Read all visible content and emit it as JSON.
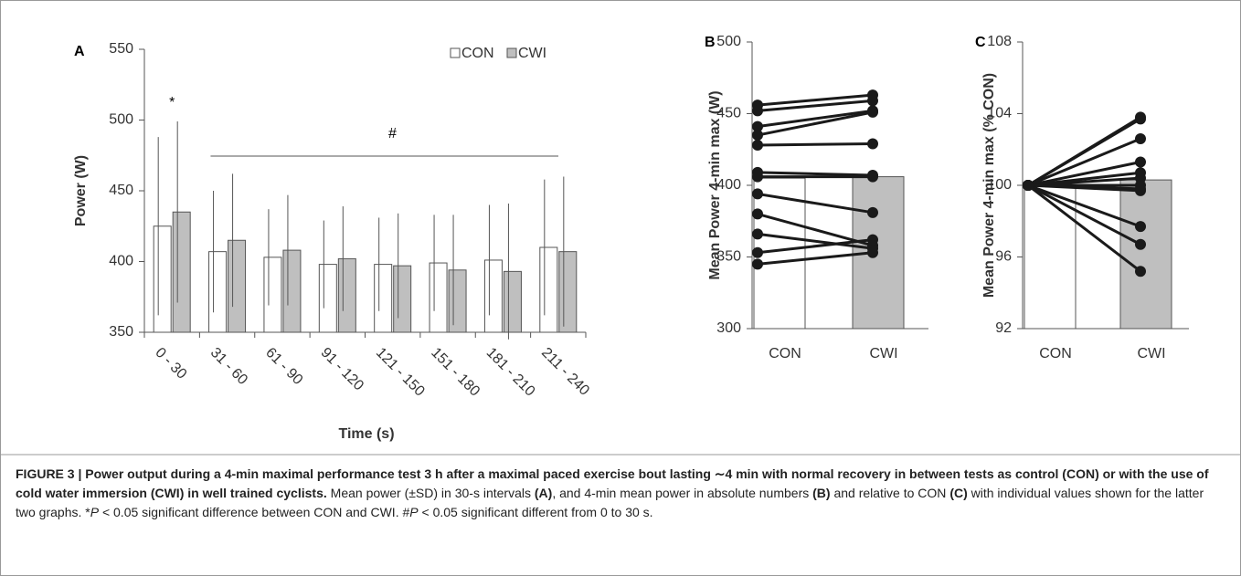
{
  "chart_data": [
    {
      "type": "bar",
      "panel_label": "A",
      "y_label": "Power (W)",
      "x_label": "Time (s)",
      "categories": [
        "0 - 30",
        "31 - 60",
        "61 - 90",
        "91 - 120",
        "121 - 150",
        "151 - 180",
        "181 - 210",
        "211 - 240"
      ],
      "series": [
        {
          "name": "CON",
          "color": "#ffffff",
          "values": [
            425,
            407,
            403,
            398,
            398,
            399,
            401,
            410
          ],
          "errors": [
            63,
            43,
            34,
            31,
            33,
            34,
            39,
            48
          ]
        },
        {
          "name": "CWI",
          "color": "#bfbfbf",
          "values": [
            435,
            415,
            408,
            402,
            397,
            394,
            393,
            407
          ],
          "errors": [
            64,
            47,
            39,
            37,
            37,
            39,
            48,
            53
          ]
        }
      ],
      "annotations": [
        "*",
        "#"
      ],
      "ylim": [
        350,
        550
      ],
      "yticks": [
        350,
        400,
        450,
        500,
        550
      ]
    },
    {
      "type": "paired_bar",
      "panel_label": "B",
      "y_label": "Mean Power 4-min max (W)",
      "categories": [
        "CON",
        "CWI"
      ],
      "colors": [
        "#ffffff",
        "#bfbfbf"
      ],
      "values": [
        405,
        406
      ],
      "individuals": [
        [
          456,
          463
        ],
        [
          452,
          459
        ],
        [
          441,
          452
        ],
        [
          435,
          451
        ],
        [
          428,
          429
        ],
        [
          409,
          407
        ],
        [
          406,
          406
        ],
        [
          394,
          381
        ],
        [
          380,
          358
        ],
        [
          366,
          356
        ],
        [
          353,
          362
        ],
        [
          345,
          353
        ]
      ],
      "ylim": [
        300,
        500
      ],
      "yticks": [
        300,
        350,
        400,
        450,
        500
      ]
    },
    {
      "type": "paired_bar",
      "panel_label": "C",
      "y_label": "Mean Power 4-min max (% CON)",
      "categories": [
        "CON",
        "CWI"
      ],
      "colors": [
        "#ffffff",
        "#bfbfbf"
      ],
      "values": [
        100,
        100.3
      ],
      "individuals": [
        [
          100,
          103.8
        ],
        [
          100,
          103.7
        ],
        [
          100,
          102.6
        ],
        [
          100,
          101.3
        ],
        [
          100,
          100.7
        ],
        [
          100,
          100.4
        ],
        [
          100,
          100.0
        ],
        [
          100,
          99.8
        ],
        [
          100,
          99.7
        ],
        [
          100,
          97.7
        ],
        [
          100,
          96.7
        ],
        [
          100,
          95.2
        ]
      ],
      "ylim": [
        92,
        108
      ],
      "yticks": [
        92,
        96,
        100,
        104,
        108
      ]
    }
  ],
  "caption": [
    {
      "text": "FIGURE 3 | Power output during a 4-min maximal performance test 3 h after a maximal paced exercise bout lasting ∼4 min with normal recovery in between tests as control (CON) or with the use of cold water immersion (CWI) in well trained cyclists.",
      "style": "bold"
    },
    {
      "text": " Mean power (±SD) in 30-s intervals ",
      "style": "normal"
    },
    {
      "text": "(A)",
      "style": "bold"
    },
    {
      "text": ", and 4-min mean power in absolute numbers ",
      "style": "normal"
    },
    {
      "text": "(B)",
      "style": "bold"
    },
    {
      "text": " and relative to CON ",
      "style": "normal"
    },
    {
      "text": "(C)",
      "style": "bold"
    },
    {
      "text": " with individual values shown for the latter two graphs. *",
      "style": "normal"
    },
    {
      "text": "P",
      "style": "italic"
    },
    {
      "text": " < 0.05 significant difference between CON and CWI. #",
      "style": "normal"
    },
    {
      "text": "P",
      "style": "italic"
    },
    {
      "text": " < 0.05 significant different from 0 to 30 s.",
      "style": "normal"
    }
  ]
}
